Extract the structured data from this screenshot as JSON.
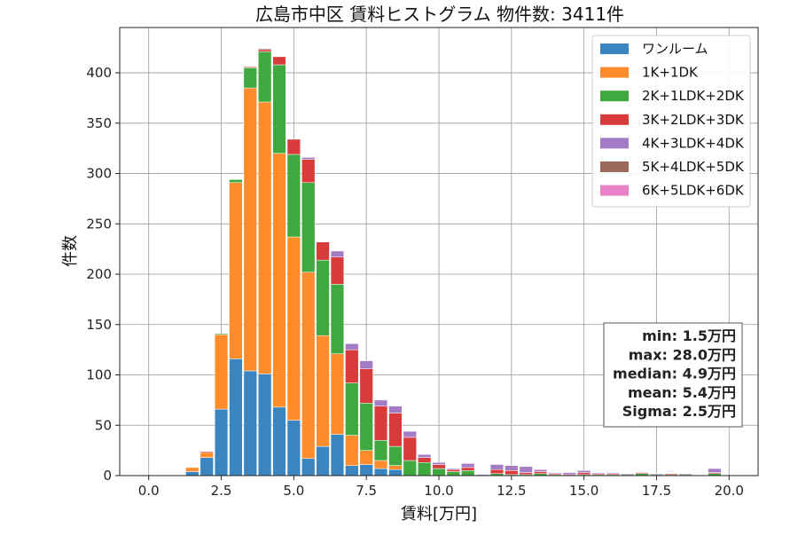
{
  "chart_data": {
    "type": "bar",
    "stacked": true,
    "title": "広島市中区 賃料ヒストグラム 物件数: 3411件",
    "xlabel": "賃料[万円]",
    "ylabel": "件数",
    "xlim": [
      -1,
      21
    ],
    "ylim": [
      0,
      445
    ],
    "xticks": [
      "0.0",
      "2.5",
      "5.0",
      "7.5",
      "10.0",
      "12.5",
      "15.0",
      "17.5",
      "20.0"
    ],
    "yticks": [
      "0",
      "50",
      "100",
      "150",
      "200",
      "250",
      "300",
      "350",
      "400"
    ],
    "grid": true,
    "legend_position": "top-right",
    "bin_width": 0.5,
    "x": [
      1.5,
      2.0,
      2.5,
      3.0,
      3.5,
      4.0,
      4.5,
      5.0,
      5.5,
      6.0,
      6.5,
      7.0,
      7.5,
      8.0,
      8.5,
      9.0,
      9.5,
      10.0,
      10.5,
      11.0,
      11.5,
      12.0,
      12.5,
      13.0,
      13.5,
      14.0,
      14.5,
      15.0,
      15.5,
      16.0,
      16.5,
      17.0,
      17.5,
      18.0,
      18.5,
      19.0,
      19.5
    ],
    "series": [
      {
        "name": "ワンルーム",
        "color": "#3a85c0",
        "values": [
          4,
          18,
          66,
          116,
          104,
          101,
          68,
          55,
          17,
          29,
          41,
          10,
          11,
          7,
          6,
          0,
          0,
          0,
          0,
          0,
          0,
          0,
          0,
          0,
          0,
          0,
          0,
          0,
          0,
          0,
          0,
          0,
          0,
          0,
          0,
          0,
          0
        ]
      },
      {
        "name": "1K+1DK",
        "color": "#ff8c2a",
        "values": [
          4,
          5,
          74,
          175,
          281,
          270,
          252,
          182,
          185,
          110,
          80,
          30,
          14,
          8,
          4,
          0,
          0,
          0,
          0,
          0,
          0,
          0,
          0,
          0,
          0,
          0,
          0,
          0,
          0,
          0,
          0,
          0,
          0,
          0,
          0,
          0,
          0
        ]
      },
      {
        "name": "2K+1LDK+2DK",
        "color": "#3fa83f",
        "values": [
          0,
          0,
          1,
          3,
          20,
          50,
          88,
          82,
          89,
          75,
          69,
          52,
          47,
          20,
          19,
          15,
          13,
          7,
          4,
          5,
          0,
          2,
          1,
          1,
          2,
          1,
          0,
          1,
          1,
          1,
          1,
          2,
          1,
          1,
          1,
          0,
          2
        ]
      },
      {
        "name": "3K+2LDK+3DK",
        "color": "#d93b3b",
        "values": [
          0,
          1,
          0,
          0,
          1,
          2,
          8,
          15,
          23,
          18,
          27,
          33,
          34,
          34,
          33,
          23,
          5,
          4,
          2,
          3,
          0,
          4,
          4,
          2,
          2,
          1,
          1,
          2,
          1,
          1,
          0,
          1,
          0,
          1,
          0,
          0,
          1
        ]
      },
      {
        "name": "4K+3LDK+4DK",
        "color": "#a57bc6",
        "values": [
          0,
          0,
          0,
          0,
          0,
          0,
          0,
          0,
          2,
          0,
          6,
          6,
          8,
          6,
          7,
          6,
          3,
          2,
          1,
          4,
          1,
          5,
          5,
          6,
          2,
          1,
          2,
          2,
          1,
          1,
          1,
          0,
          1,
          0,
          1,
          0,
          4
        ]
      },
      {
        "name": "5K+4LDK+5DK",
        "color": "#9a6a5c",
        "values": [
          0,
          0,
          0,
          0,
          0,
          1,
          0,
          0,
          0,
          0,
          0,
          0,
          0,
          0,
          0,
          0,
          0,
          0,
          0,
          0,
          0,
          0,
          0,
          0,
          0,
          0,
          0,
          0,
          0,
          0,
          0,
          0,
          0,
          0,
          0,
          0,
          0
        ]
      },
      {
        "name": "6K+5LDK+6DK",
        "color": "#e882c6",
        "values": [
          0,
          0,
          0,
          0,
          0,
          0,
          0,
          0,
          0,
          0,
          0,
          0,
          0,
          0,
          0,
          0,
          0,
          0,
          0,
          0,
          0,
          0,
          0,
          0,
          0,
          0,
          0,
          0,
          0,
          0,
          0,
          0,
          0,
          0,
          0,
          0,
          0
        ]
      }
    ],
    "annotations": [
      "min: 1.5万円",
      "max: 28.0万円",
      "median: 4.9万円",
      "mean: 5.4万円",
      "Sigma: 2.5万円"
    ]
  }
}
